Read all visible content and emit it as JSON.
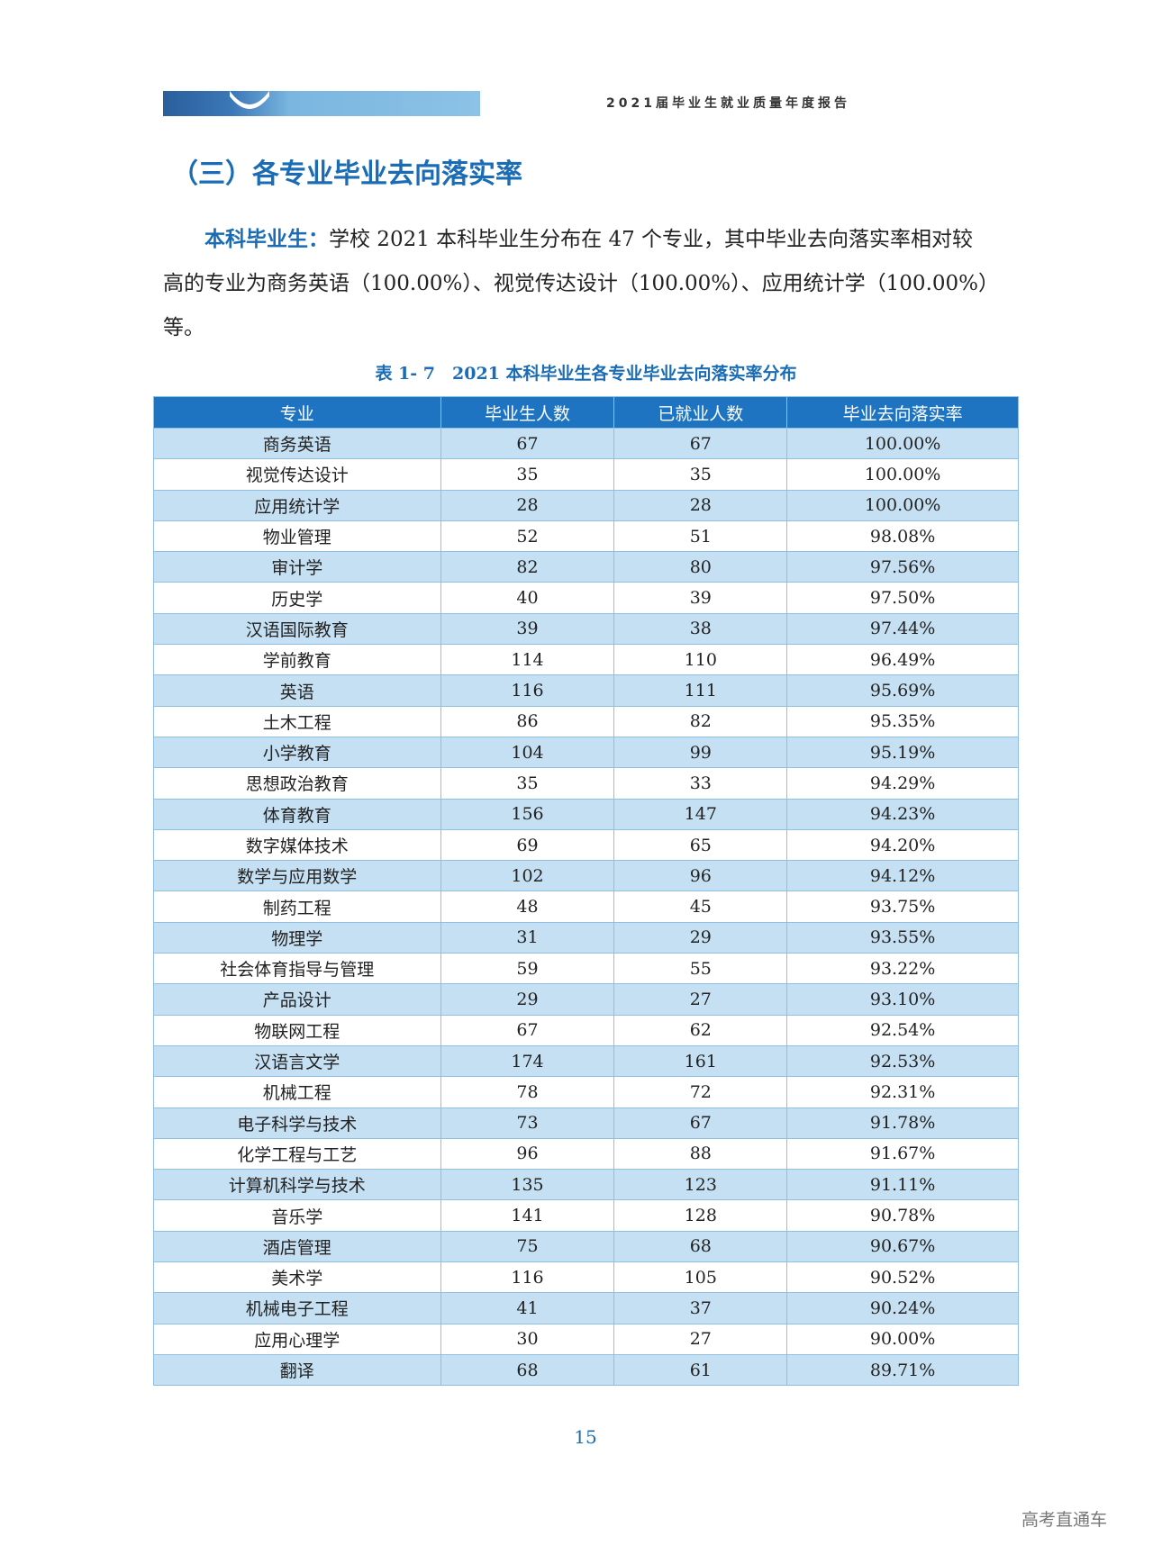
{
  "header": {
    "title": "2021届毕业生就业质量年度报告"
  },
  "section_title": "（三）各专业毕业去向落实率",
  "paragraph": {
    "lead": "本科毕业生：",
    "text": "学校 2021 本科毕业生分布在 47 个专业，其中毕业去向落实率相对较高的专业为商务英语（100.00%）、视觉传达设计（100.00%）、应用统计学（100.00%）等。"
  },
  "table": {
    "caption": "表 1- 7　2021 本科毕业生各专业毕业去向落实率分布",
    "columns": [
      "专业",
      "毕业生人数",
      "已就业人数",
      "毕业去向落实率"
    ],
    "rows": [
      [
        "商务英语",
        "67",
        "67",
        "100.00%"
      ],
      [
        "视觉传达设计",
        "35",
        "35",
        "100.00%"
      ],
      [
        "应用统计学",
        "28",
        "28",
        "100.00%"
      ],
      [
        "物业管理",
        "52",
        "51",
        "98.08%"
      ],
      [
        "审计学",
        "82",
        "80",
        "97.56%"
      ],
      [
        "历史学",
        "40",
        "39",
        "97.50%"
      ],
      [
        "汉语国际教育",
        "39",
        "38",
        "97.44%"
      ],
      [
        "学前教育",
        "114",
        "110",
        "96.49%"
      ],
      [
        "英语",
        "116",
        "111",
        "95.69%"
      ],
      [
        "土木工程",
        "86",
        "82",
        "95.35%"
      ],
      [
        "小学教育",
        "104",
        "99",
        "95.19%"
      ],
      [
        "思想政治教育",
        "35",
        "33",
        "94.29%"
      ],
      [
        "体育教育",
        "156",
        "147",
        "94.23%"
      ],
      [
        "数字媒体技术",
        "69",
        "65",
        "94.20%"
      ],
      [
        "数学与应用数学",
        "102",
        "96",
        "94.12%"
      ],
      [
        "制药工程",
        "48",
        "45",
        "93.75%"
      ],
      [
        "物理学",
        "31",
        "29",
        "93.55%"
      ],
      [
        "社会体育指导与管理",
        "59",
        "55",
        "93.22%"
      ],
      [
        "产品设计",
        "29",
        "27",
        "93.10%"
      ],
      [
        "物联网工程",
        "67",
        "62",
        "92.54%"
      ],
      [
        "汉语言文学",
        "174",
        "161",
        "92.53%"
      ],
      [
        "机械工程",
        "78",
        "72",
        "92.31%"
      ],
      [
        "电子科学与技术",
        "73",
        "67",
        "91.78%"
      ],
      [
        "化学工程与工艺",
        "96",
        "88",
        "91.67%"
      ],
      [
        "计算机科学与技术",
        "135",
        "123",
        "91.11%"
      ],
      [
        "音乐学",
        "141",
        "128",
        "90.78%"
      ],
      [
        "酒店管理",
        "75",
        "68",
        "90.67%"
      ],
      [
        "美术学",
        "116",
        "105",
        "90.52%"
      ],
      [
        "机械电子工程",
        "41",
        "37",
        "90.24%"
      ],
      [
        "应用心理学",
        "30",
        "27",
        "90.00%"
      ],
      [
        "翻译",
        "68",
        "61",
        "89.71%"
      ]
    ]
  },
  "page_number": "15",
  "watermark": "高考直通车"
}
